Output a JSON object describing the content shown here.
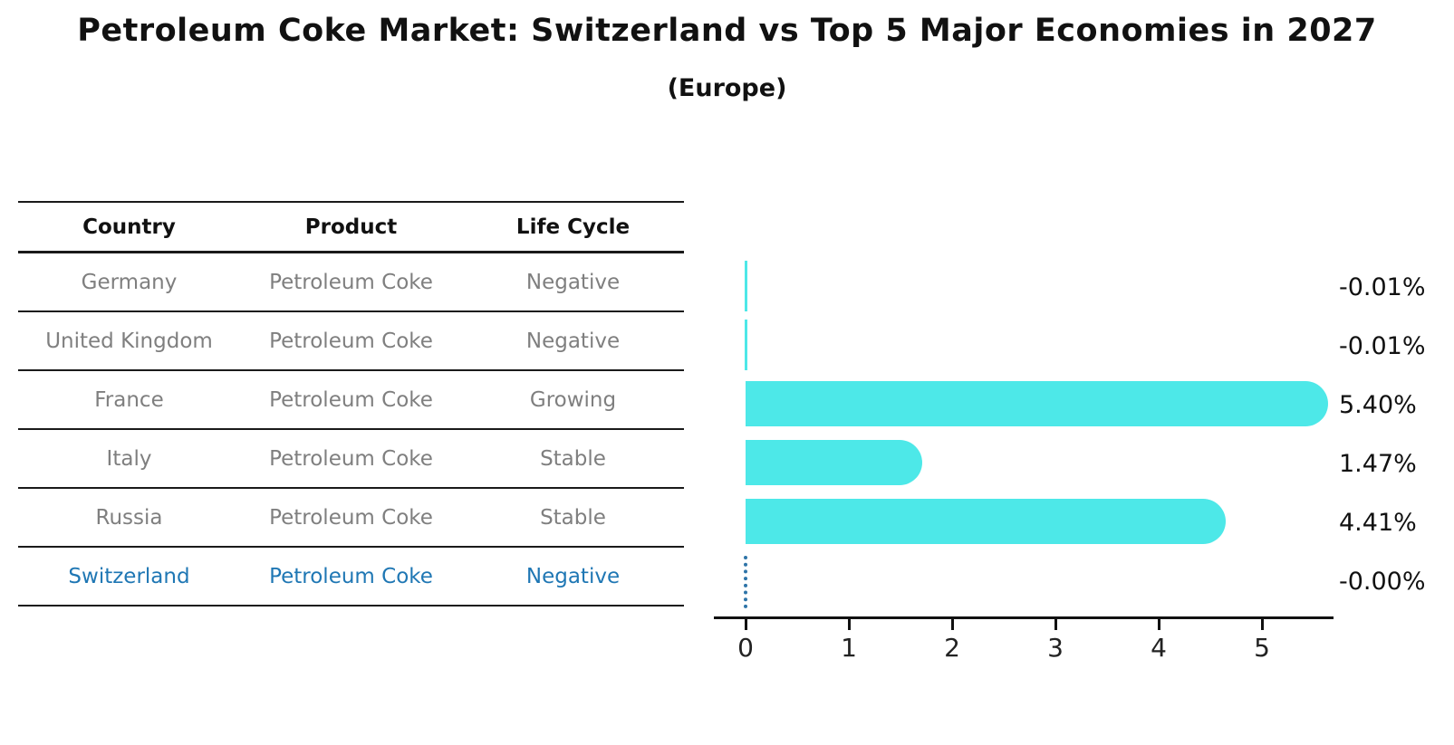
{
  "title": "Petroleum Coke Market: Switzerland vs Top 5 Major Economies in 2027",
  "subtitle": "(Europe)",
  "table": {
    "headers": [
      "Country",
      "Product",
      "Life Cycle"
    ],
    "rows": [
      {
        "country": "Germany",
        "product": "Petroleum Coke",
        "life_cycle": "Negative",
        "highlight": false
      },
      {
        "country": "United Kingdom",
        "product": "Petroleum Coke",
        "life_cycle": "Negative",
        "highlight": false
      },
      {
        "country": "France",
        "product": "Petroleum Coke",
        "life_cycle": "Growing",
        "highlight": false
      },
      {
        "country": "Italy",
        "product": "Petroleum Coke",
        "life_cycle": "Stable",
        "highlight": false
      },
      {
        "country": "Russia",
        "product": "Petroleum Coke",
        "life_cycle": "Stable",
        "highlight": false
      },
      {
        "country": "Switzerland",
        "product": "Petroleum Coke",
        "life_cycle": "Negative",
        "highlight": true
      }
    ]
  },
  "chart_data": {
    "type": "bar",
    "orientation": "horizontal",
    "title": "Petroleum Coke Market: Switzerland vs Top 5 Major Economies in 2027",
    "subtitle": "(Europe)",
    "categories": [
      "Germany",
      "United Kingdom",
      "France",
      "Italy",
      "Russia",
      "Switzerland"
    ],
    "values": [
      -0.01,
      -0.01,
      5.4,
      1.47,
      4.41,
      -0.0
    ],
    "value_labels": [
      "-0.01%",
      "-0.01%",
      "5.40%",
      "1.47%",
      "4.41%",
      "-0.00%"
    ],
    "unit": "%",
    "xlim": [
      0,
      5.7
    ],
    "x_ticks": [
      0,
      1,
      2,
      3,
      4,
      5
    ],
    "x_tick_labels": [
      "0",
      "1",
      "2",
      "3",
      "4",
      "5"
    ],
    "bar_color": "#4DE8E8",
    "highlight_marker_color": "#2E74A8",
    "highlight_index": 5,
    "grid": false,
    "legend": false
  },
  "colors": {
    "title_text": "#111111",
    "table_text": "#7f7f7f",
    "highlight_text": "#1F77B4",
    "axis": "#111111",
    "value_label_text": "#111111"
  }
}
